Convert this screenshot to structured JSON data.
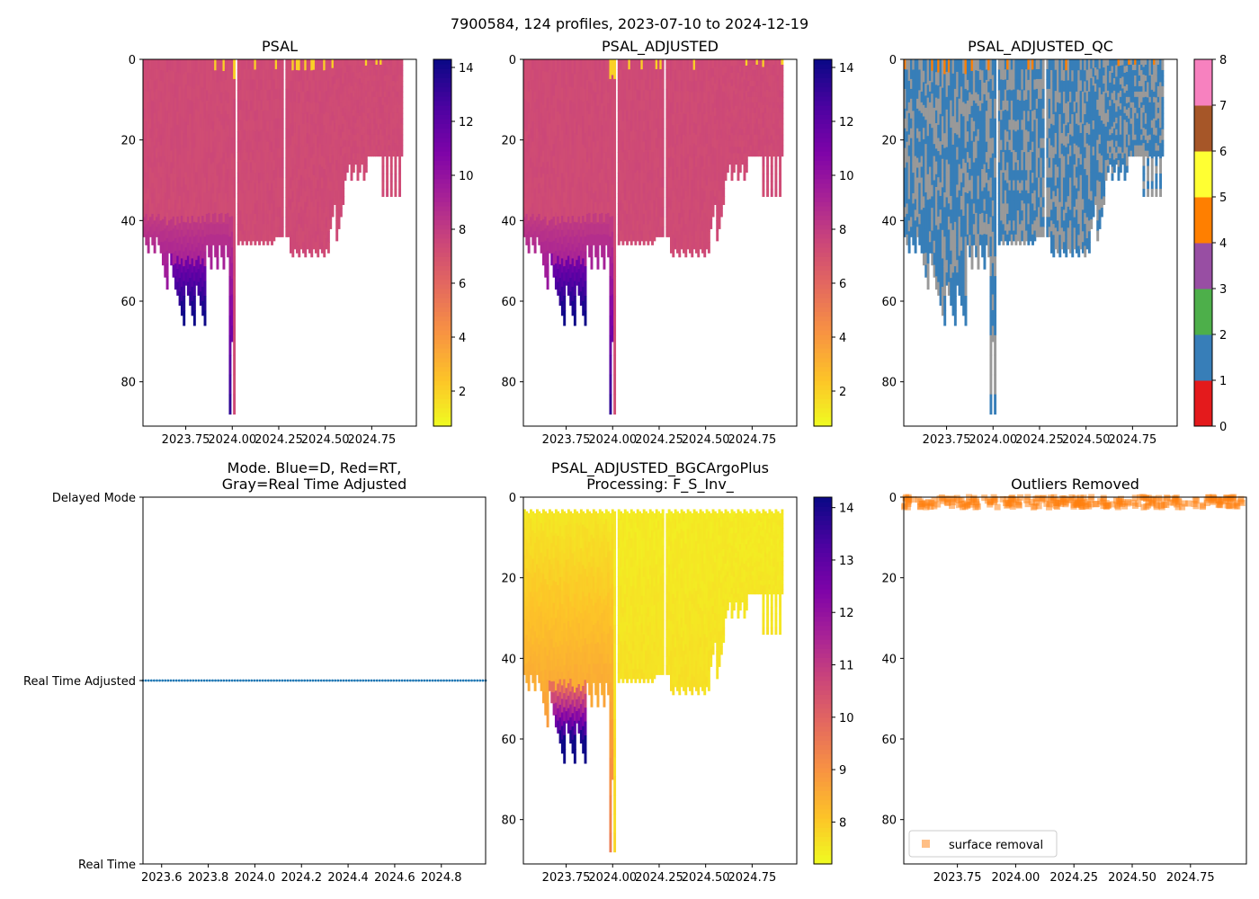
{
  "figure": {
    "suptitle": "7900584, 124 profiles, 2023-07-10 to 2024-12-19"
  },
  "colors": {
    "plasma": [
      "#f0f921",
      "#fdc328",
      "#f89441",
      "#e56b5d",
      "#cc4778",
      "#a82296",
      "#7e03a8",
      "#4c02a1",
      "#0d0887"
    ],
    "qc": [
      "#e41a1c",
      "#377eb8",
      "#4daf4a",
      "#984ea3",
      "#ff7f00",
      "#ffff33",
      "#a65628",
      "#f781bf",
      "#999999"
    ],
    "mode_dots": "#1f77b4",
    "outlier": "#ff7f0e"
  },
  "chart_data": [
    {
      "id": "psal",
      "type": "heatmap",
      "title": "PSAL",
      "xlim": [
        2023.52,
        2024.99
      ],
      "ylim": [
        91,
        0
      ],
      "xticks": [
        "2023.75",
        "2024.00",
        "2024.25",
        "2024.50",
        "2024.75"
      ],
      "xtick_values": [
        2023.75,
        2024.0,
        2024.25,
        2024.5,
        2024.75
      ],
      "yticks": [
        "0",
        "20",
        "40",
        "60",
        "80"
      ],
      "ytick_values": [
        0,
        20,
        40,
        60,
        80
      ],
      "colorbar": {
        "min": 0.7,
        "max": 14.3,
        "cmap": "plasma",
        "ticks": [
          "2",
          "4",
          "6",
          "8",
          "10",
          "12",
          "14"
        ],
        "tick_values": [
          2,
          4,
          6,
          8,
          10,
          12,
          14
        ]
      },
      "typical_value": 7.3
    },
    {
      "id": "psal_adj",
      "type": "heatmap",
      "title": "PSAL_ADJUSTED",
      "xlim": [
        2023.52,
        2024.99
      ],
      "ylim": [
        91,
        0
      ],
      "xticks": [
        "2023.75",
        "2024.00",
        "2024.25",
        "2024.50",
        "2024.75"
      ],
      "xtick_values": [
        2023.75,
        2024.0,
        2024.25,
        2024.5,
        2024.75
      ],
      "yticks": [
        "0",
        "20",
        "40",
        "60",
        "80"
      ],
      "ytick_values": [
        0,
        20,
        40,
        60,
        80
      ],
      "colorbar": {
        "min": 0.7,
        "max": 14.3,
        "cmap": "plasma",
        "ticks": [
          "2",
          "4",
          "6",
          "8",
          "10",
          "12",
          "14"
        ],
        "tick_values": [
          2,
          4,
          6,
          8,
          10,
          12,
          14
        ]
      },
      "typical_value": 7.3
    },
    {
      "id": "psal_qc",
      "type": "heatmap",
      "title": "PSAL_ADJUSTED_QC",
      "xlim": [
        2023.52,
        2024.99
      ],
      "ylim": [
        91,
        0
      ],
      "xticks": [
        "2023.75",
        "2024.00",
        "2024.25",
        "2024.50",
        "2024.75"
      ],
      "xtick_values": [
        2023.75,
        2024.0,
        2024.25,
        2024.5,
        2024.75
      ],
      "yticks": [
        "0",
        "20",
        "40",
        "60",
        "80"
      ],
      "ytick_values": [
        0,
        20,
        40,
        60,
        80
      ],
      "colorbar": {
        "min": 0,
        "max": 8,
        "cmap": "qc",
        "ticks": [
          "0",
          "1",
          "2",
          "3",
          "4",
          "5",
          "6",
          "7",
          "8"
        ],
        "tick_values": [
          0,
          1,
          2,
          3,
          4,
          5,
          6,
          7,
          8
        ]
      },
      "qc_values_present": [
        1,
        4,
        8
      ]
    },
    {
      "id": "mode",
      "type": "scatter",
      "title_line1": "Mode. Blue=D, Red=RT,",
      "title_line2": "Gray=Real Time Adjusted",
      "xlim": [
        2023.52,
        2024.99
      ],
      "xticks": [
        "2023.6",
        "2023.8",
        "2024.0",
        "2024.2",
        "2024.4",
        "2024.6",
        "2024.8"
      ],
      "xtick_values": [
        2023.6,
        2023.8,
        2024.0,
        2024.2,
        2024.4,
        2024.6,
        2024.8
      ],
      "ylim": [
        0,
        2
      ],
      "ycategories": [
        "Real Time",
        "Real Time Adjusted",
        "Delayed Mode"
      ],
      "ycategory_values": [
        0,
        1,
        2
      ],
      "points_level": 1,
      "x_start": 2023.52,
      "x_end": 2024.99,
      "n_points": 124
    },
    {
      "id": "bgc",
      "type": "heatmap",
      "title_line1": "PSAL_ADJUSTED_BGCArgoPlus",
      "title_line2": "Processing: F_S_Inv_",
      "xlim": [
        2023.52,
        2024.99
      ],
      "ylim": [
        91,
        0
      ],
      "xticks": [
        "2023.75",
        "2024.00",
        "2024.25",
        "2024.50",
        "2024.75"
      ],
      "xtick_values": [
        2023.75,
        2024.0,
        2024.25,
        2024.5,
        2024.75
      ],
      "yticks": [
        "0",
        "20",
        "40",
        "60",
        "80"
      ],
      "ytick_values": [
        0,
        20,
        40,
        60,
        80
      ],
      "colorbar": {
        "min": 7.2,
        "max": 14.2,
        "cmap": "plasma",
        "ticks": [
          "8",
          "9",
          "10",
          "11",
          "12",
          "13",
          "14"
        ],
        "tick_values": [
          8,
          9,
          10,
          11,
          12,
          13,
          14
        ]
      },
      "typical_value": 7.5
    },
    {
      "id": "outliers",
      "type": "scatter",
      "title": "Outliers Removed",
      "xlim": [
        2023.52,
        2024.99
      ],
      "ylim": [
        91,
        0
      ],
      "xticks": [
        "2023.75",
        "2024.00",
        "2024.25",
        "2024.50",
        "2024.75"
      ],
      "xtick_values": [
        2023.75,
        2024.0,
        2024.25,
        2024.5,
        2024.75
      ],
      "yticks": [
        "0",
        "20",
        "40",
        "60",
        "80"
      ],
      "ytick_values": [
        0,
        20,
        40,
        60,
        80
      ],
      "legend": "surface removal",
      "legend_loc": "lower-left",
      "depth_range": [
        0,
        2.5
      ]
    }
  ]
}
